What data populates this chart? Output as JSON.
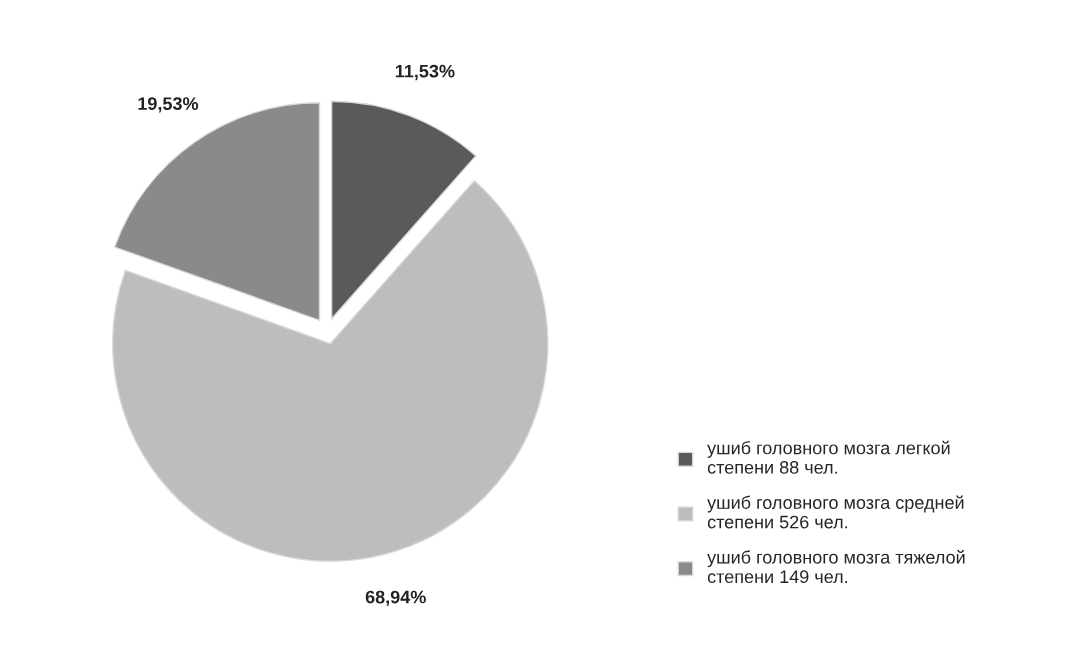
{
  "chart_data": {
    "type": "pie",
    "categories": [
      "ушиб головного мозга легкой степени 88 чел.",
      "ушиб головного мозга средней степени 526 чел.",
      "ушиб головного мозга тяжелой степени 149 чел."
    ],
    "values": [
      11.53,
      68.94,
      19.53
    ],
    "value_labels": [
      "11,53%",
      "68,94%",
      "19,53%"
    ],
    "colors": [
      "#5a5a5a",
      "#bdbdbd",
      "#8a8a8a"
    ],
    "legend": "right"
  }
}
